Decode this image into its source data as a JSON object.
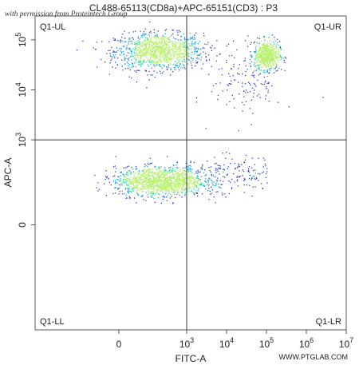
{
  "chart_data": {
    "type": "scatter",
    "title": "CL488-65113(CD8a)+APC-65151(CD3) : P3",
    "xlabel": "FITC-A",
    "ylabel": "APC-A",
    "x_scale": "biexponential",
    "y_scale": "biexponential",
    "xlim": [
      -300,
      10000000
    ],
    "ylim": [
      -300,
      300000
    ],
    "x_ticks": [
      {
        "value": 0,
        "base": "0",
        "exp": ""
      },
      {
        "value": 1000,
        "base": "10",
        "exp": "3"
      },
      {
        "value": 10000,
        "base": "10",
        "exp": "4"
      },
      {
        "value": 100000,
        "base": "10",
        "exp": "5"
      },
      {
        "value": 1000000,
        "base": "10",
        "exp": "6"
      },
      {
        "value": 10000000,
        "base": "10",
        "exp": "7"
      }
    ],
    "y_ticks": [
      {
        "value": 0,
        "base": "0",
        "exp": ""
      },
      {
        "value": 1000,
        "base": "10",
        "exp": "3"
      },
      {
        "value": 10000,
        "base": "10",
        "exp": "4"
      },
      {
        "value": 100000,
        "base": "10",
        "exp": "5"
      }
    ],
    "quadrant_gate": {
      "x": 1000,
      "y": 1000
    },
    "quadrant_labels": {
      "ul": "Q1-UL",
      "ur": "Q1-UR",
      "ll": "Q1-LL",
      "lr": "Q1-LR"
    },
    "populations": [
      {
        "center_x": 200,
        "center_y": 60000,
        "count": 1200
      },
      {
        "center_x": 100000,
        "center_y": 50000,
        "count": 650
      },
      {
        "center_x": 200,
        "center_y": 150,
        "count": 1400
      },
      {
        "center_x": 30000,
        "center_y": 15000,
        "count": 140
      },
      {
        "center_x": 8000,
        "center_y": 200,
        "count": 220
      }
    ],
    "grid": false,
    "legend": "none"
  },
  "watermark": "with permission from Proteintech Group",
  "footer_logo": "WWW.PTGLAB.COM",
  "colors": {
    "sparse": "#2b3fc8",
    "medium": "#1f9edc",
    "dense": "#3fe0a0",
    "densest": "#b8f070",
    "gate_line": "#333333",
    "axis": "#555555"
  }
}
